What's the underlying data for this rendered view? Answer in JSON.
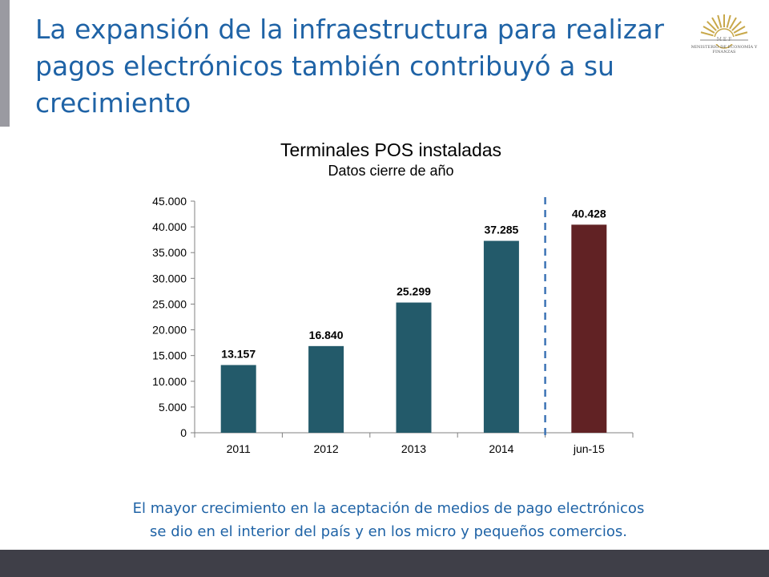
{
  "slide": {
    "title": "La expansión de la infraestructura para realizar pagos electrónicos también contribuyó a su crecimiento",
    "footnote_line1": "El mayor crecimiento en la aceptación de medios de pago electrónicos",
    "footnote_line2": "se dio en el interior del país y en los micro y pequeños comercios.",
    "logo_text": "MINISTERIO DE ECONOMÍA Y FINANZAS",
    "colors": {
      "title": "#1f63a6",
      "side_bar": "#9a9aa1",
      "footer": "#3f3f48",
      "logo_gold": "#c8a84a"
    }
  },
  "chart_data": {
    "type": "bar",
    "title": "Terminales POS instaladas",
    "subtitle": "Datos cierre de año",
    "categories": [
      "2011",
      "2012",
      "2013",
      "2014",
      "jun-15"
    ],
    "values": [
      13157,
      16840,
      25299,
      37285,
      40428
    ],
    "value_labels": [
      "13.157",
      "16.840",
      "25.299",
      "37.285",
      "40.428"
    ],
    "bar_colors": [
      "#235a6a",
      "#235a6a",
      "#235a6a",
      "#235a6a",
      "#612224"
    ],
    "ylim": [
      0,
      45000
    ],
    "yticks": [
      0,
      5000,
      10000,
      15000,
      20000,
      25000,
      30000,
      35000,
      40000,
      45000
    ],
    "ytick_labels": [
      "0",
      "5.000",
      "10.000",
      "15.000",
      "20.000",
      "25.000",
      "30.000",
      "35.000",
      "40.000",
      "45.000"
    ],
    "separator": {
      "between": [
        "2014",
        "jun-15"
      ],
      "style": "dashed",
      "color": "#3d74b5"
    },
    "grid": false,
    "xlabel": "",
    "ylabel": ""
  }
}
